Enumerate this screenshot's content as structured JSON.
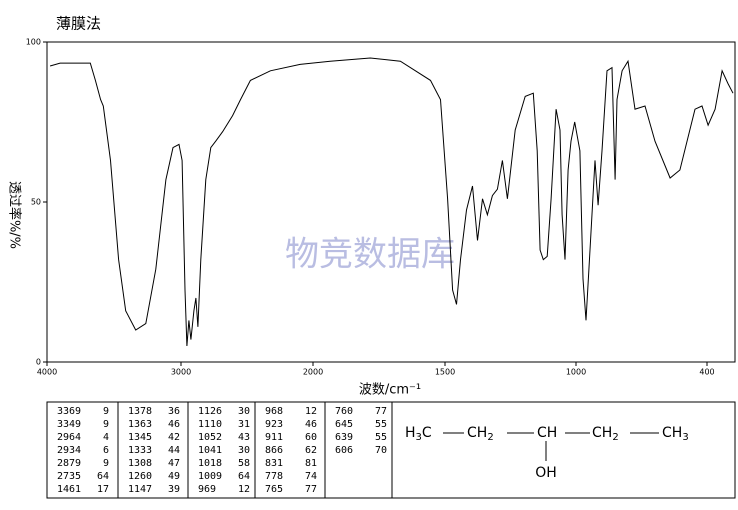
{
  "chart_data": {
    "type": "line",
    "title": "薄膜法",
    "ylabel": "透过率%/%",
    "xlabel": "波数/cm⁻¹",
    "watermark": "物竞数据库",
    "color": "#000000",
    "xlim": [
      4000,
      272
    ],
    "xticks": [
      4000,
      3000,
      2000,
      1500,
      1000,
      400
    ],
    "ylim": [
      0,
      100
    ],
    "yticks": [
      0,
      50,
      100
    ],
    "x": [
      3977,
      3902,
      3677,
      3639,
      3600,
      3580,
      3526,
      3466,
      3413,
      3338,
      3263,
      3188,
      3113,
      3060,
      3015,
      2992,
      2970,
      2955,
      2940,
      2925,
      2902,
      2887,
      2872,
      2850,
      2812,
      2774,
      2737,
      2684,
      2609,
      2549,
      2474,
      2323,
      2098,
      1935,
      1783,
      1669,
      1555,
      1517,
      1490,
      1471,
      1456,
      1441,
      1418,
      1395,
      1376,
      1357,
      1338,
      1319,
      1300,
      1281,
      1262,
      1232,
      1194,
      1163,
      1148,
      1137,
      1125,
      1110,
      1095,
      1076,
      1061,
      1053,
      1042,
      1030,
      1019,
      1005,
      982,
      968,
      954,
      936,
      913,
      899,
      881,
      858,
      835,
      821,
      812,
      789,
      762,
      730,
      684,
      638,
      569,
      524,
      455,
      423,
      395,
      363,
      331,
      304,
      281
    ],
    "values": [
      92.5,
      93.4,
      93.4,
      88,
      82,
      80,
      63,
      32,
      16,
      10,
      12,
      29,
      57,
      67,
      68,
      63,
      22.5,
      5,
      13,
      7,
      16,
      20,
      11,
      32,
      57,
      67,
      69,
      72,
      77,
      82,
      88,
      91,
      93,
      94,
      95,
      94,
      88,
      82,
      51,
      22.5,
      18,
      32,
      47.5,
      55,
      38,
      51,
      46,
      52,
      54,
      63,
      51,
      72.5,
      83,
      84,
      66,
      35,
      32,
      33,
      51,
      79,
      72.5,
      46,
      32,
      60,
      69,
      75,
      66,
      26,
      13,
      35,
      63,
      49,
      66,
      91,
      92,
      57,
      82,
      91,
      94,
      79,
      80,
      69,
      57.5,
      60,
      79,
      80,
      74,
      79,
      91,
      87,
      84
    ]
  },
  "peak_table": [
    [
      [
        "3369",
        "9"
      ],
      [
        "3349",
        "9"
      ],
      [
        "2964",
        "4"
      ],
      [
        "2934",
        "6"
      ],
      [
        "2879",
        "9"
      ],
      [
        "2735",
        "64"
      ],
      [
        "1461",
        "17"
      ]
    ],
    [
      [
        "1378",
        "36"
      ],
      [
        "1363",
        "46"
      ],
      [
        "1345",
        "42"
      ],
      [
        "1333",
        "44"
      ],
      [
        "1308",
        "47"
      ],
      [
        "1260",
        "49"
      ],
      [
        "1147",
        "39"
      ]
    ],
    [
      [
        "1126",
        "30"
      ],
      [
        "1110",
        "31"
      ],
      [
        "1052",
        "43"
      ],
      [
        "1041",
        "30"
      ],
      [
        "1018",
        "58"
      ],
      [
        "1009",
        "64"
      ],
      [
        "969",
        "12"
      ]
    ],
    [
      [
        "968",
        "12"
      ],
      [
        "923",
        "46"
      ],
      [
        "911",
        "60"
      ],
      [
        "866",
        "62"
      ],
      [
        "831",
        "81"
      ],
      [
        "778",
        "74"
      ],
      [
        "765",
        "77"
      ]
    ],
    [
      [
        "760",
        "77"
      ],
      [
        "645",
        "55"
      ],
      [
        "639",
        "55"
      ],
      [
        "606",
        "70"
      ]
    ]
  ],
  "structure": {
    "groups": [
      [
        "H",
        "3",
        "C"
      ],
      [
        "CH",
        "2"
      ],
      [
        "CH"
      ],
      [
        "CH",
        "2"
      ],
      [
        "CH",
        "3"
      ]
    ],
    "substituent": "OH"
  }
}
